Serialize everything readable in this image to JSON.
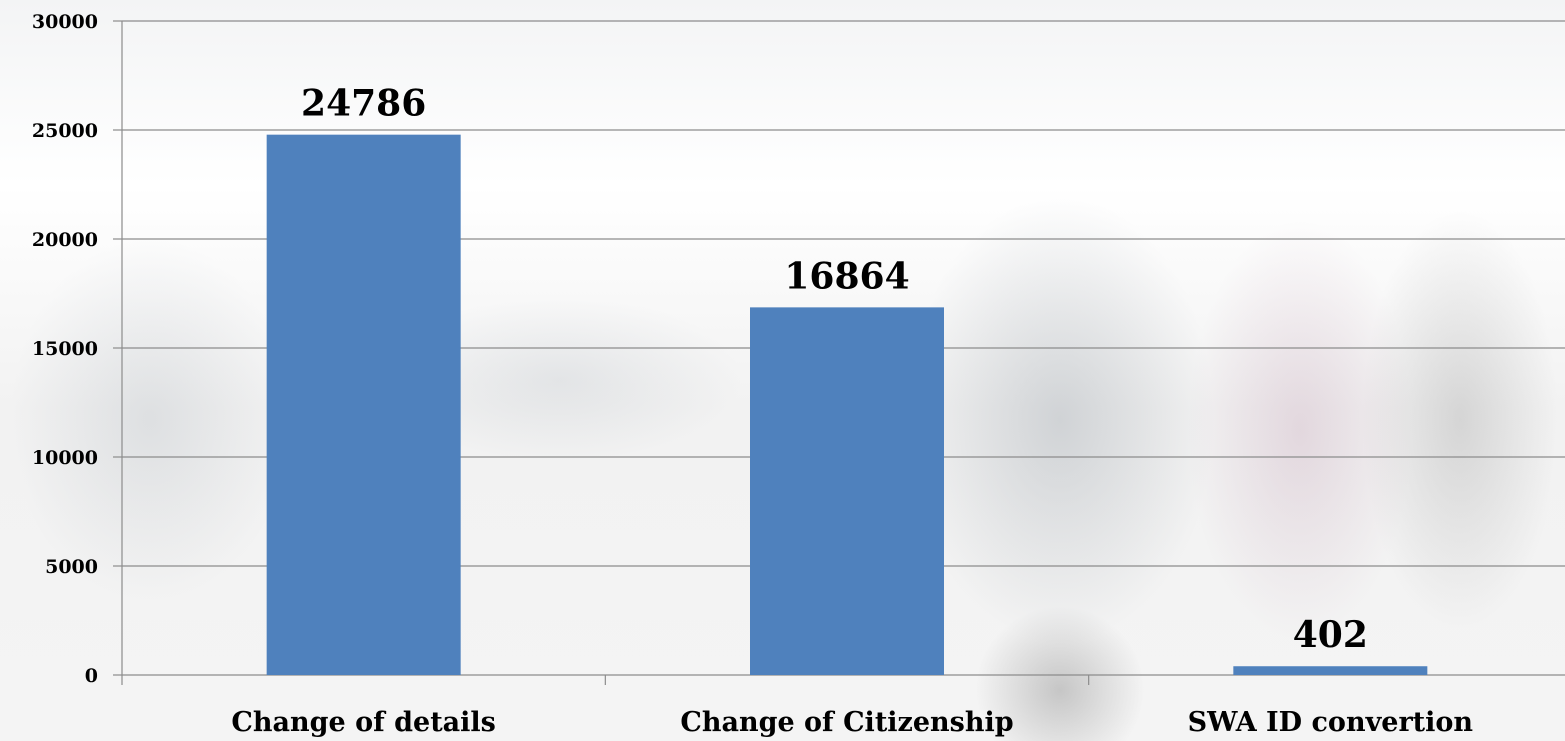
{
  "chart_data": {
    "type": "bar",
    "categories": [
      "Change of details",
      "Change of Citizenship",
      "SWA ID convertion"
    ],
    "values": [
      24786,
      16864,
      402
    ],
    "data_labels": [
      "24786",
      "16864",
      "402"
    ],
    "yticks": [
      "0",
      "5000",
      "10000",
      "15000",
      "20000",
      "25000",
      "30000"
    ],
    "ylim": [
      0,
      30000
    ],
    "grid": true,
    "legend": "none",
    "bar_color": "#4f81bd",
    "grid_color": "#8c8c8c"
  }
}
